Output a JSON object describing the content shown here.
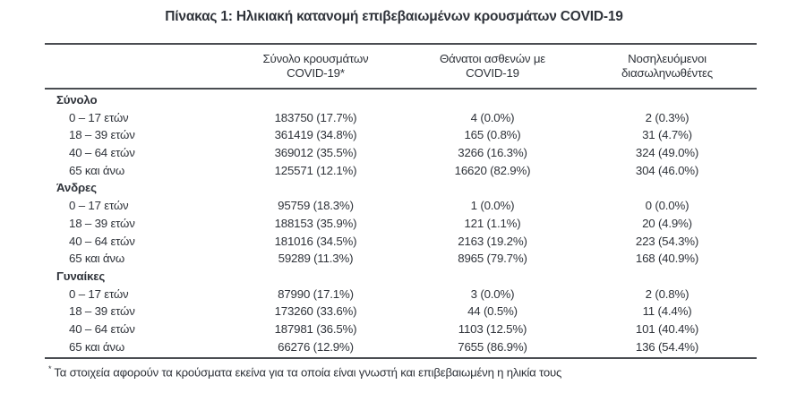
{
  "page": {
    "title": "Πίνακας 1: Ηλικιακή κατανομή επιβεβαιωμένων κρουσμάτων COVID-19",
    "footnote_marker": "*",
    "footnote": "Τα στοιχεία αφορούν τα κρούσματα εκείνα για τα οποία είναι γνωστή και επιβεβαιωμένη η ηλικία τους"
  },
  "colors": {
    "text": "#2f333a",
    "rule": "#4a4d52",
    "background": "#ffffff"
  },
  "table": {
    "headers": {
      "cases": "Σύνολο κρουσμάτων COVID-19*",
      "deaths": "Θάνατοι ασθενών με COVID-19",
      "intubated": "Νοσηλευόμενοι διασωληνωθέντες"
    },
    "sections": [
      {
        "label": "Σύνολο",
        "rows": [
          {
            "label": "0 – 17 ετών",
            "cases": "183750 (17.7%)",
            "deaths": "4 (0.0%)",
            "intubated": "2 (0.3%)"
          },
          {
            "label": "18 – 39 ετών",
            "cases": "361419 (34.8%)",
            "deaths": "165 (0.8%)",
            "intubated": "31 (4.7%)"
          },
          {
            "label": "40 – 64 ετών",
            "cases": "369012 (35.5%)",
            "deaths": "3266 (16.3%)",
            "intubated": "324 (49.0%)"
          },
          {
            "label": "65 και άνω",
            "cases": "125571 (12.1%)",
            "deaths": "16620 (82.9%)",
            "intubated": "304 (46.0%)"
          }
        ]
      },
      {
        "label": "Άνδρες",
        "rows": [
          {
            "label": "0 – 17 ετών",
            "cases": "95759 (18.3%)",
            "deaths": "1 (0.0%)",
            "intubated": "0 (0.0%)"
          },
          {
            "label": "18 – 39 ετών",
            "cases": "188153 (35.9%)",
            "deaths": "121 (1.1%)",
            "intubated": "20 (4.9%)"
          },
          {
            "label": "40 – 64 ετών",
            "cases": "181016 (34.5%)",
            "deaths": "2163 (19.2%)",
            "intubated": "223 (54.3%)"
          },
          {
            "label": "65 και άνω",
            "cases": "59289 (11.3%)",
            "deaths": "8965 (79.7%)",
            "intubated": "168 (40.9%)"
          }
        ]
      },
      {
        "label": "Γυναίκες",
        "rows": [
          {
            "label": "0 – 17 ετών",
            "cases": "87990 (17.1%)",
            "deaths": "3 (0.0%)",
            "intubated": "2 (0.8%)"
          },
          {
            "label": "18 – 39 ετών",
            "cases": "173260 (33.6%)",
            "deaths": "44 (0.5%)",
            "intubated": "11 (4.4%)"
          },
          {
            "label": "40 – 64 ετών",
            "cases": "187981 (36.5%)",
            "deaths": "1103 (12.5%)",
            "intubated": "101 (40.4%)"
          },
          {
            "label": "65 και άνω",
            "cases": "66276 (12.9%)",
            "deaths": "7655 (86.9%)",
            "intubated": "136 (54.4%)"
          }
        ]
      }
    ]
  }
}
